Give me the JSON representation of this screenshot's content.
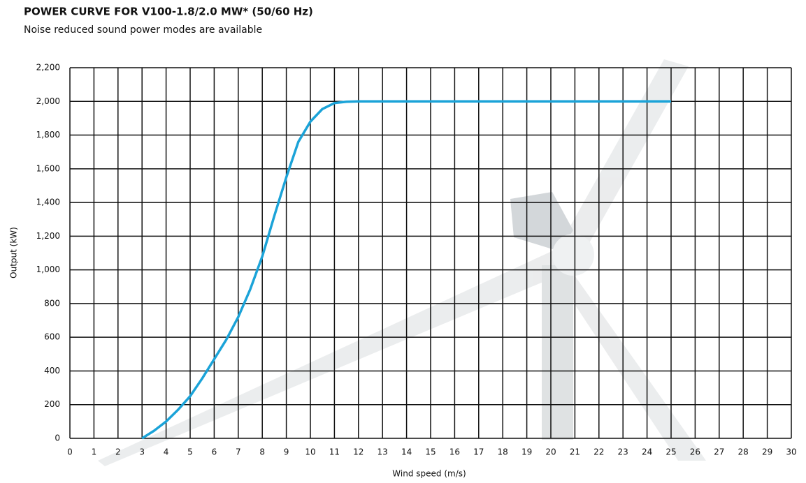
{
  "chart_data": {
    "type": "line",
    "title": "POWER CURVE FOR V100-1.8/2.0 MW* (50/60 Hz)",
    "subtitle": "Noise reduced sound power modes are available",
    "xlabel": "Wind speed (m/s)",
    "ylabel": "Output (kW)",
    "x": [
      3,
      3.5,
      4,
      4.5,
      5,
      5.5,
      6,
      6.5,
      7,
      7.5,
      8,
      8.5,
      9,
      9.5,
      10,
      10.5,
      11,
      11.5,
      12,
      13,
      14,
      15,
      16,
      17,
      18,
      19,
      20,
      21,
      22,
      23,
      24,
      25
    ],
    "series": [
      {
        "name": "Output",
        "color": "#1ba3d8",
        "values": [
          0,
          45,
          100,
          170,
          250,
          355,
          470,
          585,
          720,
          885,
          1080,
          1320,
          1550,
          1760,
          1880,
          1955,
          1990,
          1998,
          2000,
          2000,
          2000,
          2000,
          2000,
          2000,
          2000,
          2000,
          2000,
          2000,
          2000,
          2000,
          2000,
          2000
        ]
      }
    ],
    "xlim": [
      0,
      30
    ],
    "xticks": [
      0,
      1,
      2,
      3,
      4,
      5,
      6,
      7,
      8,
      9,
      10,
      11,
      12,
      13,
      14,
      15,
      16,
      17,
      18,
      19,
      20,
      21,
      22,
      23,
      24,
      25,
      26,
      27,
      28,
      29,
      30
    ],
    "ylim": [
      0,
      2200
    ],
    "yticks": [
      0,
      200,
      400,
      600,
      800,
      {
        "value": 1000,
        "label": "1,000"
      },
      {
        "value": 1200,
        "label": "1,200"
      },
      {
        "value": 1400,
        "label": "1,400"
      },
      {
        "value": 1600,
        "label": "1,600"
      },
      {
        "value": 1800,
        "label": "1,800"
      },
      {
        "value": 2000,
        "label": "2,000"
      },
      {
        "value": 2200,
        "label": "2,200"
      }
    ],
    "grid": true
  }
}
